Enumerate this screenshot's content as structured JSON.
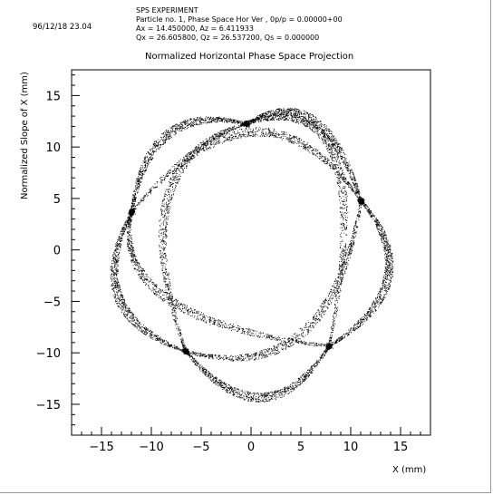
{
  "header": {
    "date": "96/12/18  23.04",
    "experiment": "SPS EXPERIMENT",
    "particle_line": "Particle no.  1, Phase Space Hor Ver    , 0p/p = 0.00000+00",
    "amplitude_line": "Ax =  14.450000, Az =   6.411933",
    "tune_line": "Qx =  26.605800, Qz =  26.537200, Qs =  0.000000"
  },
  "chart_data": {
    "type": "scatter",
    "title": "Normalized Horizontal Phase Space Projection",
    "xlabel": "X (mm)",
    "ylabel": "Normalized Slope of X (mm)",
    "xlim": [
      -18,
      18
    ],
    "ylim": [
      -18,
      17.5
    ],
    "xticks": [
      -15,
      -10,
      -5,
      0,
      5,
      10,
      15
    ],
    "yticks": [
      -15,
      -10,
      -5,
      0,
      5,
      10,
      15
    ],
    "grid": false,
    "marker_color": "#000000",
    "nodes": [
      {
        "x": -0.5,
        "y": 12.3
      },
      {
        "x": 11.0,
        "y": 4.8
      },
      {
        "x": 7.8,
        "y": -9.3
      },
      {
        "x": -6.6,
        "y": -9.8
      },
      {
        "x": -12.0,
        "y": 3.7
      }
    ],
    "lobes": [
      {
        "from": 0,
        "to": 1,
        "apex_x": 6.2,
        "apex_y": 12.6
      },
      {
        "from": 1,
        "to": 2,
        "apex_x": 13.7,
        "apex_y": -2.7
      },
      {
        "from": 2,
        "to": 3,
        "apex_x": 1.0,
        "apex_y": -14.3
      },
      {
        "from": 3,
        "to": 4,
        "apex_x": -13.3,
        "apex_y": -4.6
      },
      {
        "from": 4,
        "to": 0,
        "apex_x": -8.3,
        "apex_y": 11.3
      },
      {
        "from": 0,
        "to": 2,
        "apex_x": 8.4,
        "apex_y": 9.0
      },
      {
        "from": 1,
        "to": 3,
        "apex_x": 5.0,
        "apex_y": -8.1
      },
      {
        "from": 2,
        "to": 4,
        "apex_x": -8.3,
        "apex_y": -4.8
      },
      {
        "from": 3,
        "to": 0,
        "apex_x": -8.4,
        "apex_y": 5.0
      },
      {
        "from": 4,
        "to": 1,
        "apex_x": 0.2,
        "apex_y": 11.5
      }
    ],
    "points_per_lobe": 900,
    "node_cluster_points": 260,
    "band_halfwidth": 0.45
  }
}
